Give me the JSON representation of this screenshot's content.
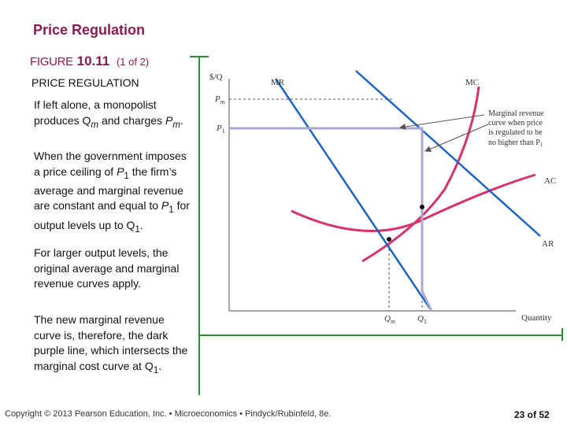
{
  "slide": {
    "title": "Price Regulation",
    "figure_word": "FIGURE",
    "figure_number": "10.11",
    "figure_part": "(1 of 2)",
    "figure_title": "PRICE REGULATION"
  },
  "text": {
    "p1": [
      "If left alone, a monopolist produces Q",
      "m",
      " and charges ",
      "P",
      "m",
      "."
    ],
    "p2": [
      "When the government imposes a price ceiling of ",
      "P",
      "1",
      " the firm’s average and marginal revenue are constant and equal to ",
      "P",
      "1",
      " for output levels up to Q",
      "1",
      "."
    ],
    "p3": "For larger output levels, the original average and marginal revenue curves apply.",
    "p4": [
      "The new marginal revenue curve is, therefore, the dark purple line, which intersects the marginal cost curve at Q",
      "1",
      "."
    ]
  },
  "diagram": {
    "y_axis_label": "$/Q",
    "x_axis_label": "Quantity",
    "curve_labels": {
      "mr": "MR",
      "mc": "MC",
      "ac": "AC",
      "ar": "AR"
    },
    "price_labels": {
      "pm": [
        "P",
        "m"
      ],
      "p1": [
        "P",
        "1"
      ]
    },
    "quantity_labels": {
      "qm": [
        "Q",
        "m"
      ],
      "q1": [
        "Q",
        "1"
      ]
    },
    "annotation": [
      "Marginal revenue",
      "curve when price",
      "is regulated to be",
      "no higher than P",
      "1"
    ],
    "colors": {
      "demand_mr": "#1a63c2",
      "mc_ac": "#d6336c",
      "regulated_mr": "#a9a9cf",
      "dashed": "#555555",
      "axis": "#888888"
    }
  },
  "footer": {
    "copyright": "Copyright © 2013 Pearson Education, Inc. • Microeconomics • Pindyck/Rubinfeld, 8e.",
    "page": "23 of 52"
  }
}
